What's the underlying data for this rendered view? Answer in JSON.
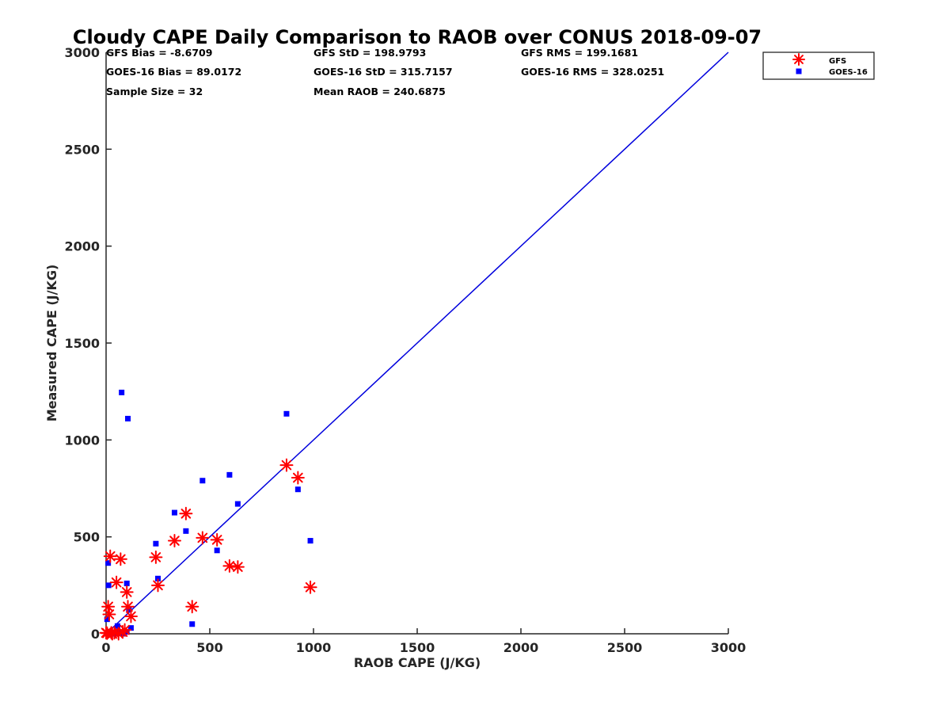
{
  "chart_data": {
    "type": "scatter",
    "title": "Cloudy CAPE Daily Comparison to RAOB over CONUS 2018-09-07",
    "xlabel": "RAOB CAPE (J/KG)",
    "ylabel": "Measured CAPE (J/KG)",
    "xlim": [
      0,
      3000
    ],
    "ylim": [
      0,
      3000
    ],
    "xticks": [
      "0",
      "500",
      "1000",
      "1500",
      "2000",
      "2500",
      "3000"
    ],
    "yticks": [
      "0",
      "500",
      "1000",
      "1500",
      "2000",
      "2500",
      "3000"
    ],
    "grid": false,
    "legend_position": "top-right",
    "reference_line": {
      "x": [
        0,
        3000
      ],
      "y": [
        0,
        3000
      ],
      "color": "#0000dd"
    },
    "stats": [
      [
        "GFS Bias = -8.6709",
        "GFS StD = 198.9793",
        "GFS RMS = 199.1681"
      ],
      [
        "GOES-16 Bias = 89.0172",
        "GOES-16 StD = 315.7157",
        "GOES-16 RMS = 328.0251"
      ],
      [
        "Sample Size = 32",
        "Mean RAOB = 240.6875",
        ""
      ]
    ],
    "series": [
      {
        "name": "GFS",
        "marker": "asterisk",
        "color": "#ff0000",
        "points": [
          [
            0,
            5
          ],
          [
            5,
            3
          ],
          [
            10,
            140
          ],
          [
            15,
            100
          ],
          [
            20,
            400
          ],
          [
            25,
            5
          ],
          [
            30,
            0
          ],
          [
            40,
            5
          ],
          [
            50,
            265
          ],
          [
            60,
            0
          ],
          [
            70,
            385
          ],
          [
            80,
            10
          ],
          [
            90,
            20
          ],
          [
            100,
            215
          ],
          [
            105,
            140
          ],
          [
            120,
            90
          ],
          [
            240,
            395
          ],
          [
            250,
            250
          ],
          [
            330,
            480
          ],
          [
            385,
            620
          ],
          [
            415,
            140
          ],
          [
            465,
            495
          ],
          [
            535,
            485
          ],
          [
            595,
            350
          ],
          [
            635,
            345
          ],
          [
            870,
            870
          ],
          [
            925,
            805
          ],
          [
            985,
            240
          ]
        ]
      },
      {
        "name": "GOES-16",
        "marker": "square",
        "color": "#0000ff",
        "points": [
          [
            5,
            75
          ],
          [
            10,
            365
          ],
          [
            12,
            250
          ],
          [
            20,
            0
          ],
          [
            30,
            5
          ],
          [
            40,
            0
          ],
          [
            55,
            40
          ],
          [
            60,
            5
          ],
          [
            75,
            1245
          ],
          [
            85,
            0
          ],
          [
            100,
            10
          ],
          [
            100,
            260
          ],
          [
            105,
            1110
          ],
          [
            110,
            125
          ],
          [
            120,
            30
          ],
          [
            240,
            465
          ],
          [
            250,
            285
          ],
          [
            330,
            625
          ],
          [
            385,
            530
          ],
          [
            415,
            50
          ],
          [
            465,
            790
          ],
          [
            535,
            430
          ],
          [
            595,
            820
          ],
          [
            635,
            670
          ],
          [
            870,
            1135
          ],
          [
            925,
            745
          ],
          [
            985,
            480
          ]
        ]
      }
    ]
  }
}
